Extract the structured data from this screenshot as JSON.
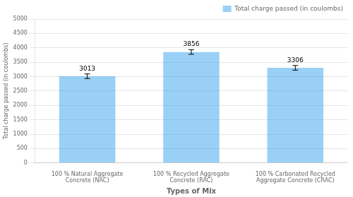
{
  "chart_data": {
    "type": "bar",
    "categories": [
      "100 % Natural Aggregate\nConcrete (NAC)",
      "100 % Recycled Aggregate\nConcrete (RAC)",
      "100 % Carbonated Recycled\nAggregate Concrete (CRAC)"
    ],
    "series": [
      {
        "name": "Total charge passed (in coulombs)",
        "values": [
          3013,
          3856,
          3306
        ],
        "errors": [
          80,
          80,
          80
        ]
      }
    ],
    "xlabel": "Types of Mix",
    "ylabel": "Total charge passed (in coulombs)",
    "ylim": [
      0,
      5000
    ],
    "yticks": [
      0,
      500,
      1000,
      1500,
      2000,
      2500,
      3000,
      3500,
      4000,
      4500,
      5000
    ],
    "grid": true,
    "legend": "upper right",
    "data_labels": true
  }
}
